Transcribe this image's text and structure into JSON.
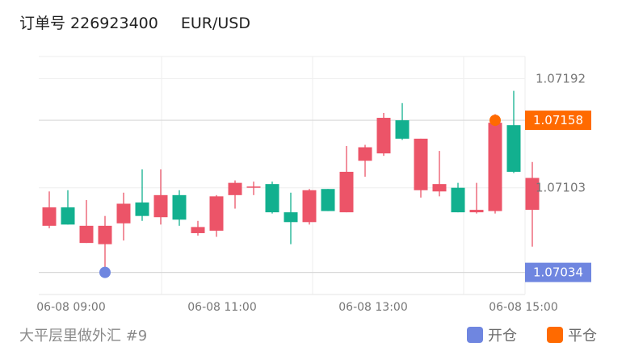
{
  "header": {
    "order_label": "订单号 226923400",
    "pair": "EUR/USD"
  },
  "footer": {
    "strategy": "大平层里做外汇 #9"
  },
  "legend": [
    {
      "label": "开仓",
      "color": "#6f86e0"
    },
    {
      "label": "平仓",
      "color": "#ff6a00"
    }
  ],
  "colors": {
    "up": "#12b08f",
    "down": "#ec5468",
    "open_marker": "#6f86e0",
    "close_marker": "#ff6a00"
  },
  "chart_data": {
    "type": "candlestick",
    "xticks": [
      "06-08 09:00",
      "06-08 11:00",
      "06-08 13:00",
      "06-08 15:00"
    ],
    "yticks": [
      "1.07192",
      "1.07103"
    ],
    "ylim": [
      1.07016,
      1.0721
    ],
    "price_labels": [
      {
        "label": "1.07158",
        "value": 1.07158,
        "color": "#ff6a00"
      },
      {
        "label": "1.07034",
        "value": 1.07034,
        "color": "#6f86e0"
      }
    ],
    "markers": [
      {
        "type": "open",
        "candle": 3,
        "value": 1.07034
      },
      {
        "type": "close",
        "candle": 24,
        "value": 1.07158
      }
    ],
    "candles": [
      {
        "o": 1.07087,
        "h": 1.071,
        "l": 1.0707,
        "c": 1.07072
      },
      {
        "o": 1.07073,
        "h": 1.07101,
        "l": 1.07073,
        "c": 1.07087
      },
      {
        "o": 1.07072,
        "h": 1.07093,
        "l": 1.07058,
        "c": 1.07058
      },
      {
        "o": 1.07072,
        "h": 1.0708,
        "l": 1.07037,
        "c": 1.07057
      },
      {
        "o": 1.0709,
        "h": 1.07099,
        "l": 1.0706,
        "c": 1.07074
      },
      {
        "o": 1.0708,
        "h": 1.07118,
        "l": 1.07076,
        "c": 1.07091
      },
      {
        "o": 1.07097,
        "h": 1.07118,
        "l": 1.07073,
        "c": 1.07079
      },
      {
        "o": 1.07077,
        "h": 1.07101,
        "l": 1.07072,
        "c": 1.07097
      },
      {
        "o": 1.07071,
        "h": 1.07076,
        "l": 1.07064,
        "c": 1.07066
      },
      {
        "o": 1.07096,
        "h": 1.07097,
        "l": 1.07063,
        "c": 1.07068
      },
      {
        "o": 1.07107,
        "h": 1.07109,
        "l": 1.07086,
        "c": 1.07097
      },
      {
        "o": 1.07104,
        "h": 1.07108,
        "l": 1.07097,
        "c": 1.07103
      },
      {
        "o": 1.07083,
        "h": 1.07108,
        "l": 1.07082,
        "c": 1.07106
      },
      {
        "o": 1.07075,
        "h": 1.07099,
        "l": 1.07057,
        "c": 1.07083
      },
      {
        "o": 1.07101,
        "h": 1.07102,
        "l": 1.07073,
        "c": 1.07075
      },
      {
        "o": 1.07084,
        "h": 1.07102,
        "l": 1.07084,
        "c": 1.07102
      },
      {
        "o": 1.07116,
        "h": 1.07137,
        "l": 1.07083,
        "c": 1.07083
      },
      {
        "o": 1.07136,
        "h": 1.07138,
        "l": 1.07112,
        "c": 1.07125
      },
      {
        "o": 1.0716,
        "h": 1.07164,
        "l": 1.07129,
        "c": 1.07131
      },
      {
        "o": 1.07143,
        "h": 1.07172,
        "l": 1.07142,
        "c": 1.07158
      },
      {
        "o": 1.07143,
        "h": 1.07143,
        "l": 1.07095,
        "c": 1.07101
      },
      {
        "o": 1.07106,
        "h": 1.07133,
        "l": 1.07096,
        "c": 1.071
      },
      {
        "o": 1.07083,
        "h": 1.07107,
        "l": 1.07083,
        "c": 1.07103
      },
      {
        "o": 1.07085,
        "h": 1.07107,
        "l": 1.07082,
        "c": 1.07083
      },
      {
        "o": 1.07156,
        "h": 1.07163,
        "l": 1.07082,
        "c": 1.07084
      },
      {
        "o": 1.07116,
        "h": 1.07182,
        "l": 1.07115,
        "c": 1.07154
      },
      {
        "o": 1.07111,
        "h": 1.07124,
        "l": 1.07055,
        "c": 1.07085
      }
    ]
  }
}
